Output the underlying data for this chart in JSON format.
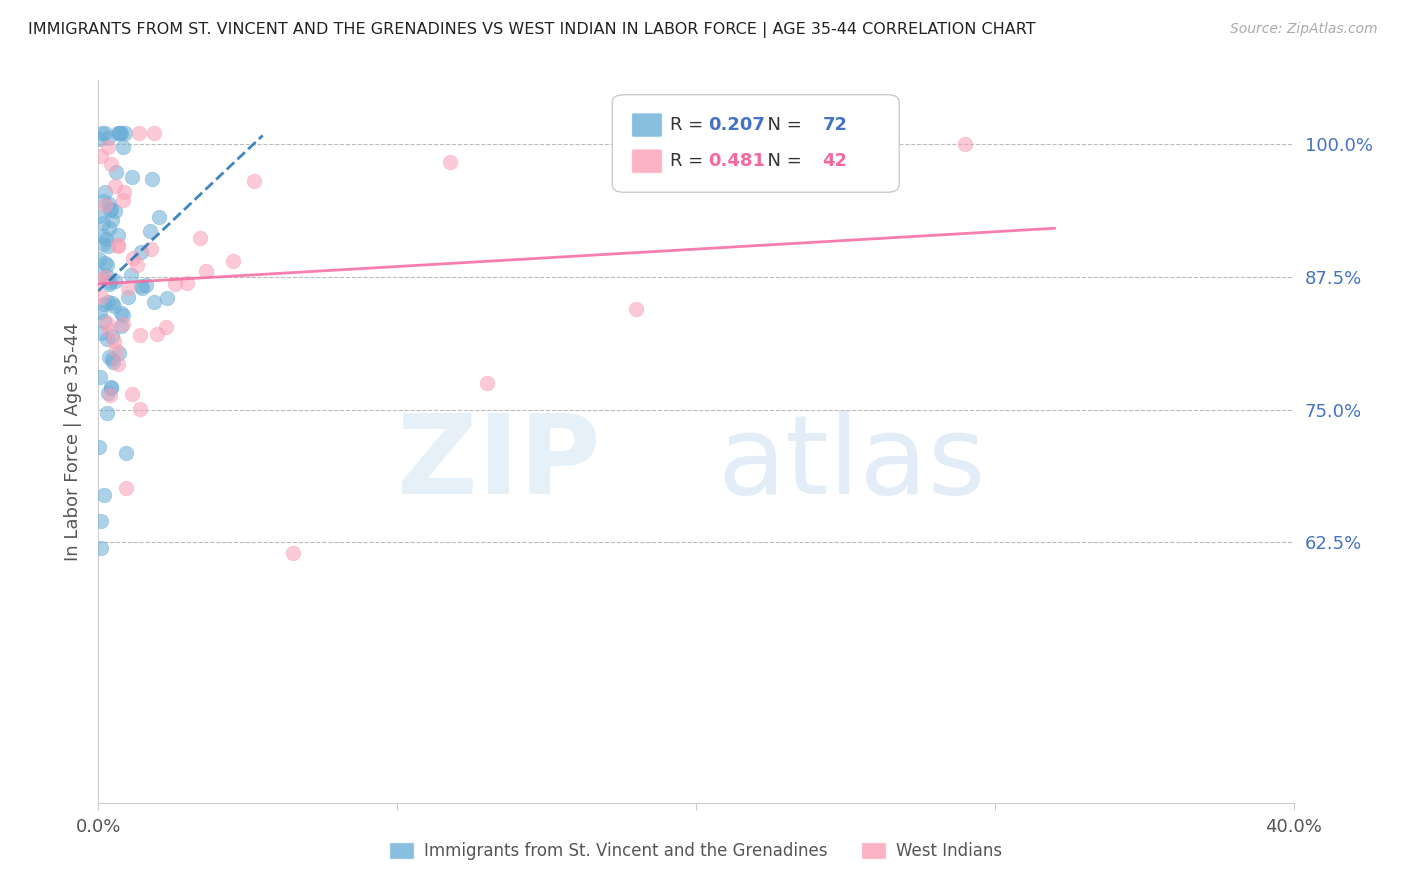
{
  "title": "IMMIGRANTS FROM ST. VINCENT AND THE GRENADINES VS WEST INDIAN IN LABOR FORCE | AGE 35-44 CORRELATION CHART",
  "source": "Source: ZipAtlas.com",
  "ylabel": "In Labor Force | Age 35-44",
  "right_yticks": [
    0.625,
    0.75,
    0.875,
    1.0
  ],
  "right_yticklabels": [
    "62.5%",
    "75.0%",
    "87.5%",
    "100.0%"
  ],
  "xmin": 0.0,
  "xmax": 0.4,
  "ymin": 0.38,
  "ymax": 1.06,
  "legend1_label": "Immigrants from St. Vincent and the Grenadines",
  "legend2_label": "West Indians",
  "R1": 0.207,
  "N1": 72,
  "R2": 0.481,
  "N2": 42,
  "color1": "#6baed6",
  "color2": "#fa9fb5",
  "line1_color": "#2171b5",
  "line2_color": "#f768a1"
}
